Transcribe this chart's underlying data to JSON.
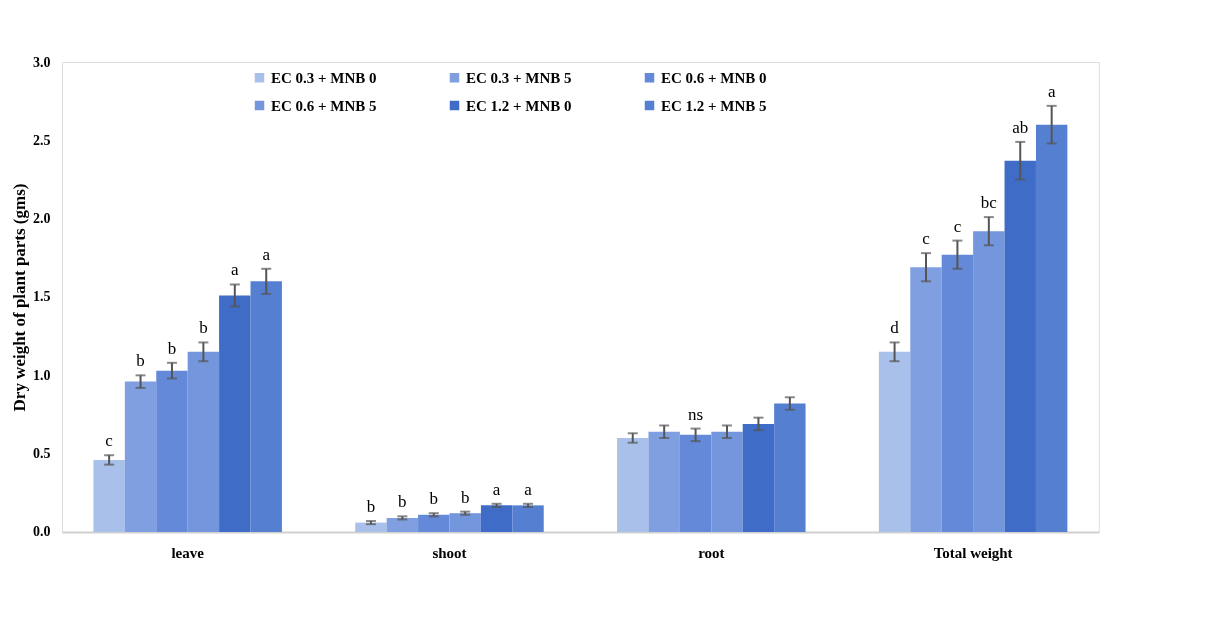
{
  "chart_data": {
    "type": "bar",
    "ylabel": "Dry weight of plant parts (gms)",
    "categories": [
      "leave",
      "shoot",
      "root",
      "Total weight"
    ],
    "series": [
      {
        "name": "EC 0.3 + MNB 0",
        "color": "#a9c0ea",
        "values": [
          0.46,
          0.06,
          0.6,
          1.15
        ],
        "errors": [
          0.03,
          0.01,
          0.03,
          0.06
        ],
        "value_labels": [
          "c",
          "b",
          null,
          "d"
        ]
      },
      {
        "name": "EC 0.3 + MNB 5",
        "color": "#7f9fe0",
        "values": [
          0.96,
          0.09,
          0.64,
          1.69
        ],
        "errors": [
          0.04,
          0.01,
          0.04,
          0.09
        ],
        "value_labels": [
          "b",
          "b",
          null,
          "c"
        ]
      },
      {
        "name": "EC 0.6 + MNB 0",
        "color": "#6489d8",
        "values": [
          1.03,
          0.11,
          0.62,
          1.77
        ],
        "errors": [
          0.05,
          0.01,
          0.04,
          0.09
        ],
        "value_labels": [
          "b",
          "b",
          "ns",
          "c"
        ]
      },
      {
        "name": "EC 0.6 + MNB 5",
        "color": "#7496dc",
        "values": [
          1.15,
          0.12,
          0.64,
          1.92
        ],
        "errors": [
          0.06,
          0.01,
          0.04,
          0.09
        ],
        "value_labels": [
          "b",
          "b",
          null,
          "bc"
        ]
      },
      {
        "name": "EC 1.2 + MNB 0",
        "color": "#3e6cc6",
        "values": [
          1.51,
          0.17,
          0.69,
          2.37
        ],
        "errors": [
          0.07,
          0.01,
          0.04,
          0.12
        ],
        "value_labels": [
          "a",
          "a",
          null,
          "ab"
        ]
      },
      {
        "name": "EC 1.2 + MNB 5",
        "color": "#5580d2",
        "values": [
          1.6,
          0.17,
          0.82,
          2.6
        ],
        "errors": [
          0.08,
          0.01,
          0.04,
          0.12
        ],
        "value_labels": [
          "a",
          "a",
          null,
          "a"
        ]
      }
    ],
    "ylim": [
      0,
      3.0
    ],
    "yticks": [
      {
        "value": 0,
        "label": "0.0"
      },
      {
        "value": 0.5,
        "label": "0.5"
      },
      {
        "value": 1.0,
        "label": "1.0"
      },
      {
        "value": 1.5,
        "label": "1.5"
      },
      {
        "value": 2.0,
        "label": "2.0"
      },
      {
        "value": 2.5,
        "label": "2.5"
      },
      {
        "value": 3.0,
        "label": "3.0"
      }
    ],
    "grid": false,
    "legend": "top"
  }
}
